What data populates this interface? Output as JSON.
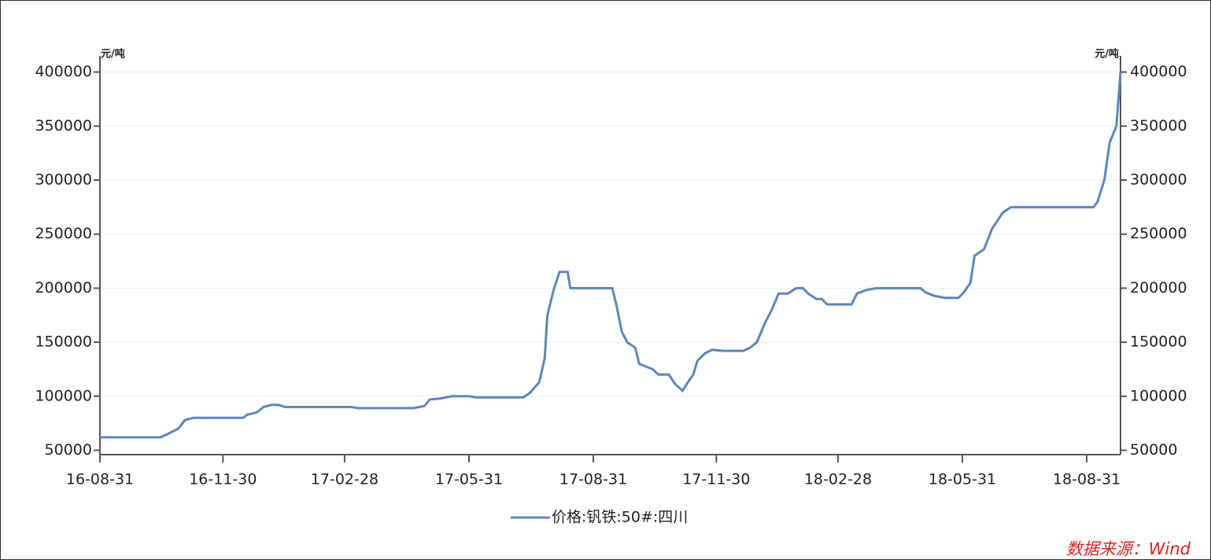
{
  "chart_data": {
    "type": "line",
    "y_label": "元/吨",
    "y2_label": "元/吨",
    "source": "数据来源：Wind",
    "xlim": [
      "16-08-31",
      "18-09-25"
    ],
    "xticks": [
      "16-08-31",
      "16-11-30",
      "17-02-28",
      "17-05-31",
      "17-08-31",
      "17-11-30",
      "18-02-28",
      "18-05-31",
      "18-08-31"
    ],
    "ylim": [
      46000,
      415000
    ],
    "yticks": [
      50000,
      100000,
      150000,
      200000,
      250000,
      300000,
      350000,
      400000
    ],
    "y2lim": [
      46000,
      415000
    ],
    "y2ticks": [
      50000,
      100000,
      150000,
      200000,
      250000,
      300000,
      350000,
      400000
    ],
    "grid": true,
    "legend": "bottom",
    "x": [
      "16-08-31",
      "16-10-15",
      "16-10-20",
      "16-10-28",
      "16-11-02",
      "16-11-08",
      "16-12-15",
      "16-12-18",
      "16-12-25",
      "16-12-30",
      "17-01-05",
      "17-01-10",
      "17-01-15",
      "17-03-05",
      "17-03-10",
      "17-04-20",
      "17-04-28",
      "17-05-02",
      "17-05-10",
      "17-05-18",
      "17-05-31",
      "17-06-05",
      "17-07-10",
      "17-07-15",
      "17-07-22",
      "17-07-26",
      "17-07-28",
      "17-08-02",
      "17-08-06",
      "17-08-12",
      "17-08-14",
      "17-09-14",
      "17-09-17",
      "17-09-21",
      "17-09-25",
      "17-10-01",
      "17-10-04",
      "17-10-14",
      "17-10-18",
      "17-10-26",
      "17-10-30",
      "17-11-05",
      "17-11-10",
      "17-11-13",
      "17-11-16",
      "17-11-22",
      "17-11-27",
      "17-12-05",
      "17-12-20",
      "17-12-25",
      "17-12-30",
      "18-01-05",
      "18-01-10",
      "18-01-15",
      "18-01-22",
      "18-01-28",
      "18-02-02",
      "18-02-06",
      "18-02-12",
      "18-02-16",
      "18-02-20",
      "18-03-10",
      "18-03-14",
      "18-03-20",
      "18-03-28",
      "18-04-30",
      "18-05-04",
      "18-05-10",
      "18-05-18",
      "18-05-28",
      "18-06-01",
      "18-06-06",
      "18-06-09",
      "18-06-16",
      "18-06-22",
      "18-06-30",
      "18-07-06",
      "18-09-05",
      "18-09-08",
      "18-09-13",
      "18-09-17",
      "18-09-22",
      "18-09-25"
    ],
    "series": [
      {
        "name": "价格:钒铁:50#:四川",
        "color": "#5b86c2",
        "values": [
          62000,
          62000,
          65000,
          70000,
          78000,
          80000,
          80000,
          83000,
          85000,
          90000,
          92000,
          92000,
          90000,
          90000,
          89000,
          89000,
          91000,
          97000,
          98000,
          100000,
          100000,
          99000,
          99000,
          103000,
          113000,
          135000,
          175000,
          200000,
          215000,
          215000,
          200000,
          200000,
          185000,
          160000,
          150000,
          145000,
          130000,
          125000,
          120000,
          120000,
          112000,
          105000,
          115000,
          120000,
          133000,
          140000,
          143000,
          142000,
          142000,
          145000,
          150000,
          168000,
          180000,
          195000,
          195000,
          200000,
          200000,
          195000,
          190000,
          190000,
          185000,
          185000,
          195000,
          198000,
          200000,
          200000,
          196000,
          193000,
          191000,
          191000,
          196000,
          205000,
          230000,
          236000,
          255000,
          270000,
          275000,
          275000,
          280000,
          300000,
          335000,
          350000,
          400000
        ]
      }
    ]
  }
}
